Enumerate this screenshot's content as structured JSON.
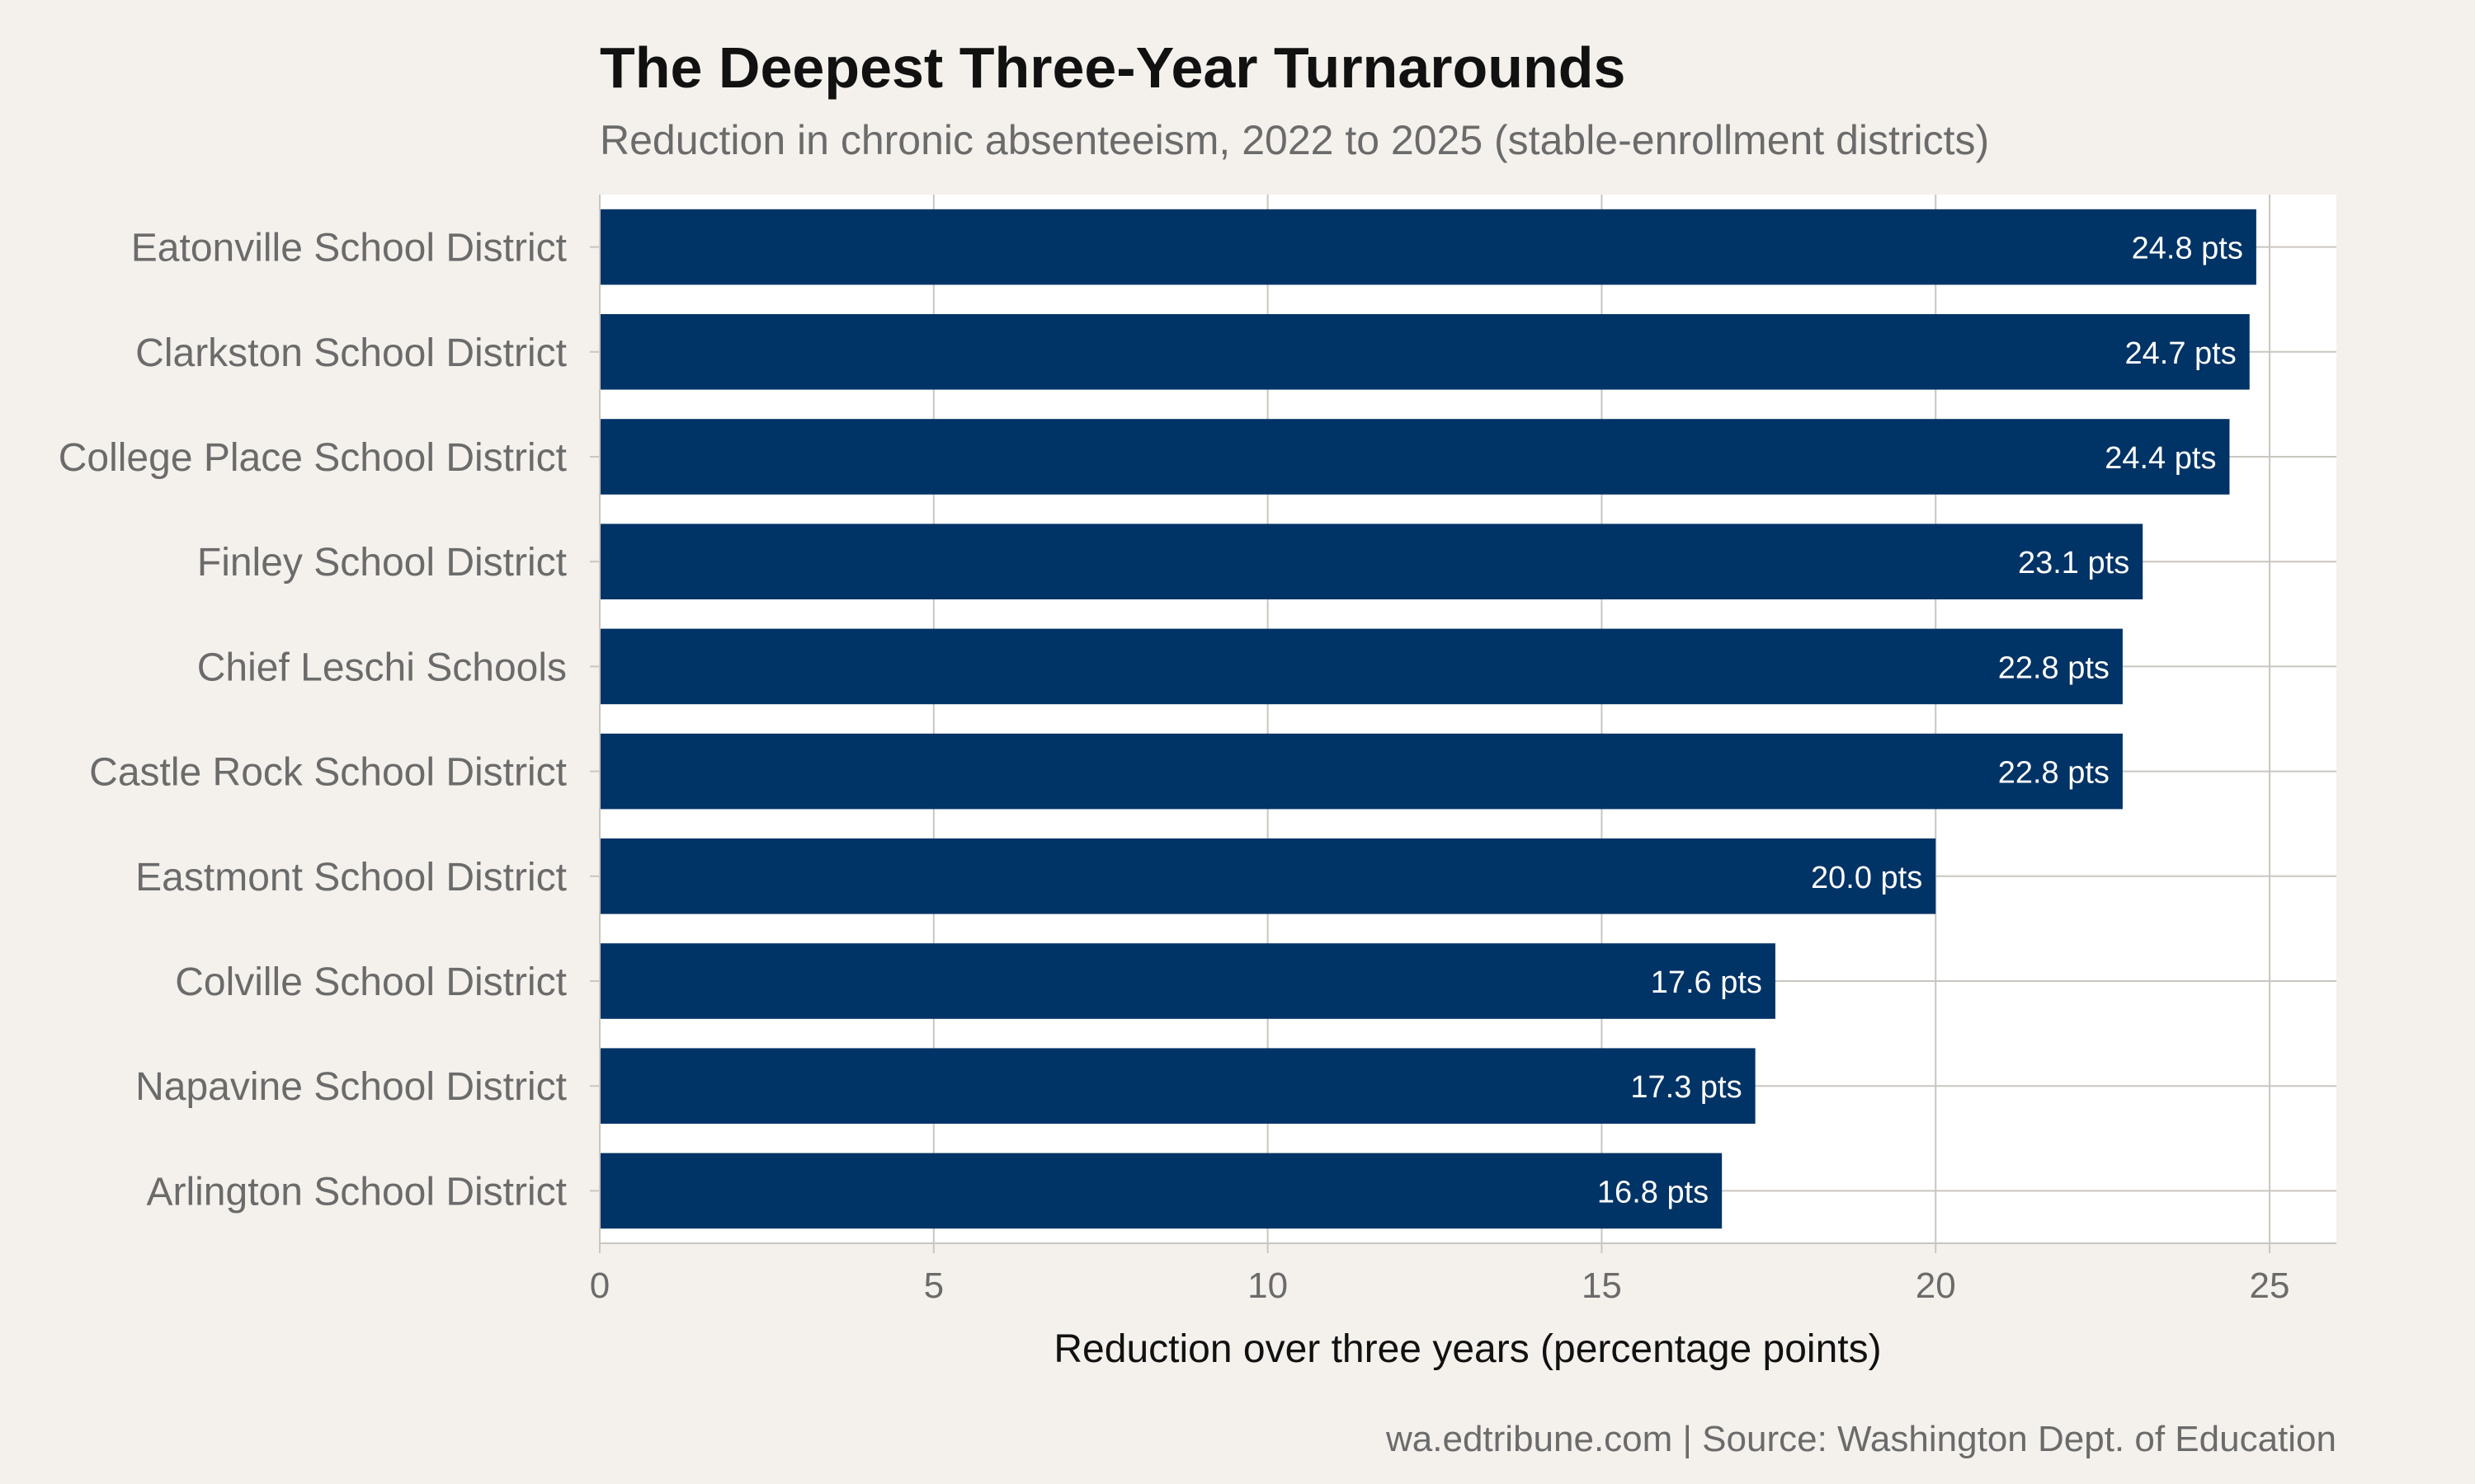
{
  "colors": {
    "background": "#f4f1ec",
    "panel": "#ffffff",
    "bar": "#003366",
    "grid": "#c9c6c0",
    "title": "#111111",
    "muted_text": "#6b6b6b",
    "bar_label": "#ffffff"
  },
  "chart_data": {
    "type": "bar",
    "orientation": "horizontal",
    "title": "The Deepest Three-Year Turnarounds",
    "subtitle": "Reduction in chronic absenteeism, 2022 to 2025 (stable-enrollment districts)",
    "xlabel": "Reduction over three years (percentage points)",
    "ylabel": "",
    "caption": "wa.edtribune.com | Source: Washington Dept. of Education",
    "xlim": [
      0,
      26
    ],
    "xticks": [
      0,
      5,
      10,
      15,
      20,
      25
    ],
    "grid": true,
    "value_label_suffix": " pts",
    "categories": [
      "Eatonville School District",
      "Clarkston School District",
      "College Place School District",
      "Finley School District",
      "Chief Leschi Schools",
      "Castle Rock School District",
      "Eastmont School District",
      "Colville School District",
      "Napavine School District",
      "Arlington School District"
    ],
    "values": [
      24.8,
      24.7,
      24.4,
      23.1,
      22.8,
      22.8,
      20.0,
      17.6,
      17.3,
      16.8
    ],
    "value_labels": [
      "24.8 pts",
      "24.7 pts",
      "24.4 pts",
      "23.1 pts",
      "22.8 pts",
      "22.8 pts",
      "20.0 pts",
      "17.6 pts",
      "17.3 pts",
      "16.8 pts"
    ]
  }
}
